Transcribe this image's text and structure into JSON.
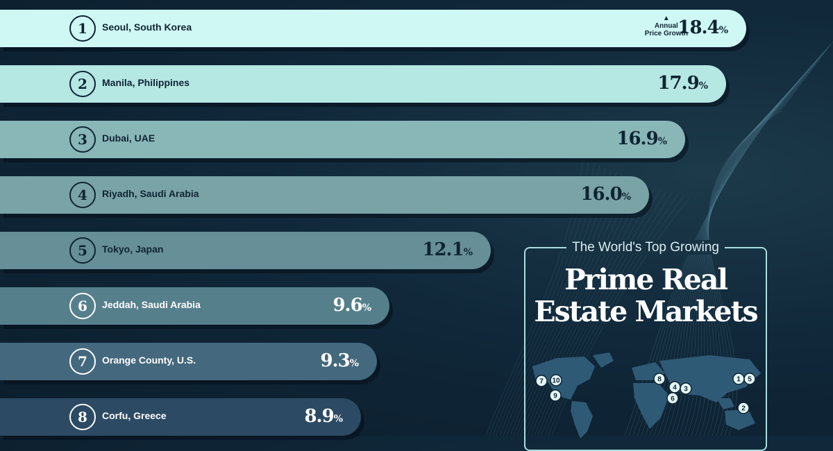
{
  "colors": {
    "background": "#10283a",
    "bar_colors": [
      "#cff7f3",
      "#b5e7e3",
      "#89b7b8",
      "#7aa3a7",
      "#668f98",
      "#567f8c",
      "#44687d",
      "#2c4a63"
    ],
    "accent": "#a8dfe0"
  },
  "panel": {
    "subtitle": "The World's Top Growing",
    "title_line1": "Prime Real",
    "title_line2": "Estate Markets"
  },
  "map": {
    "pins": [
      "7",
      "10",
      "9",
      "8",
      "4",
      "3",
      "6",
      "1",
      "5",
      "2"
    ]
  },
  "chart_data": {
    "type": "bar",
    "orientation": "horizontal",
    "value_label": "Annual Price Growth",
    "unit": "%",
    "ranks": [
      "1",
      "2",
      "3",
      "4",
      "5",
      "6",
      "7",
      "8"
    ],
    "categories": [
      "Seoul, South Korea",
      "Manila, Philippines",
      "Dubai, UAE",
      "Riyadh, Saudi Arabia",
      "Tokyo, Japan",
      "Jeddah, Saudi Arabia",
      "Orange County, U.S.",
      "Corfu, Greece"
    ],
    "values": [
      18.4,
      17.9,
      16.9,
      16.0,
      12.1,
      9.6,
      9.3,
      8.9
    ],
    "value_labels": [
      "18.4",
      "17.9",
      "16.9",
      "16.0",
      "12.1",
      "9.6",
      "9.3",
      "8.9"
    ],
    "grid": false
  }
}
